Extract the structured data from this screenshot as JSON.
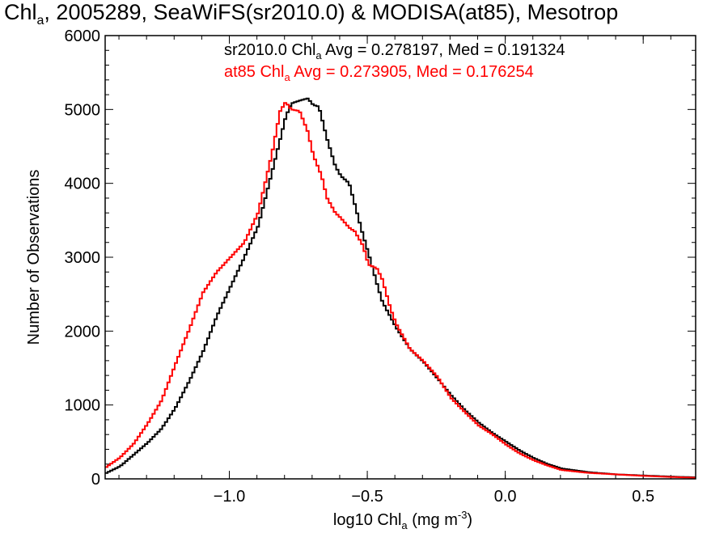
{
  "chart_data": {
    "type": "line",
    "title": {
      "prefix": "Chl",
      "sub": "a",
      "rest": ", 2005289, SeaWiFS(sr2010.0) & MODISA(at85), Mesotrop"
    },
    "xlabel": {
      "prefix": "log10 Chl",
      "sub": "a",
      "rest": " (mg m",
      "sup": "-3",
      "end": ")"
    },
    "ylabel": "Number of Observations",
    "xlim": [
      -1.45,
      0.69
    ],
    "ylim": [
      0,
      6000
    ],
    "x_ticks": [
      -1.0,
      -0.5,
      0.0,
      0.5
    ],
    "x_tick_labels": [
      "−1.0",
      "−0.5",
      "0.0",
      "0.5"
    ],
    "y_ticks": [
      0,
      1000,
      2000,
      3000,
      4000,
      5000,
      6000
    ],
    "y_tick_labels": [
      "0",
      "1000",
      "2000",
      "3000",
      "4000",
      "5000",
      "6000"
    ],
    "legend_placement": "top",
    "annotations": [
      {
        "prefix": "sr2010.0 Chl",
        "sub": "a",
        "rest": " Avg = 0.278197, Med = 0.191324",
        "color": "#000000"
      },
      {
        "prefix": "at85 Chl",
        "sub": "a",
        "rest": " Avg = 0.273905, Med = 0.176254",
        "color": "#ff0000"
      }
    ],
    "series": [
      {
        "color": "#000000",
        "points": [
          [
            -1.45,
            80
          ],
          [
            -1.4,
            170
          ],
          [
            -1.35,
            330
          ],
          [
            -1.3,
            490
          ],
          [
            -1.25,
            680
          ],
          [
            -1.2,
            960
          ],
          [
            -1.15,
            1320
          ],
          [
            -1.1,
            1720
          ],
          [
            -1.05,
            2200
          ],
          [
            -1.0,
            2600
          ],
          [
            -0.95,
            3000
          ],
          [
            -0.9,
            3420
          ],
          [
            -0.85,
            4150
          ],
          [
            -0.8,
            4900
          ],
          [
            -0.78,
            5080
          ],
          [
            -0.75,
            5120
          ],
          [
            -0.72,
            5150
          ],
          [
            -0.7,
            5060
          ],
          [
            -0.68,
            5040
          ],
          [
            -0.65,
            4600
          ],
          [
            -0.62,
            4230
          ],
          [
            -0.6,
            4100
          ],
          [
            -0.57,
            4000
          ],
          [
            -0.55,
            3720
          ],
          [
            -0.52,
            3300
          ],
          [
            -0.5,
            3050
          ],
          [
            -0.47,
            2650
          ],
          [
            -0.45,
            2400
          ],
          [
            -0.4,
            2050
          ],
          [
            -0.35,
            1760
          ],
          [
            -0.3,
            1580
          ],
          [
            -0.25,
            1360
          ],
          [
            -0.2,
            1130
          ],
          [
            -0.15,
            930
          ],
          [
            -0.1,
            760
          ],
          [
            -0.05,
            620
          ],
          [
            0.0,
            500
          ],
          [
            0.05,
            380
          ],
          [
            0.1,
            280
          ],
          [
            0.15,
            200
          ],
          [
            0.2,
            140
          ],
          [
            0.3,
            90
          ],
          [
            0.4,
            60
          ],
          [
            0.5,
            45
          ],
          [
            0.6,
            30
          ],
          [
            0.69,
            20
          ]
        ]
      },
      {
        "color": "#ff0000",
        "points": [
          [
            -1.45,
            160
          ],
          [
            -1.4,
            290
          ],
          [
            -1.35,
            480
          ],
          [
            -1.3,
            750
          ],
          [
            -1.25,
            1060
          ],
          [
            -1.2,
            1550
          ],
          [
            -1.15,
            2020
          ],
          [
            -1.1,
            2520
          ],
          [
            -1.05,
            2800
          ],
          [
            -1.0,
            3000
          ],
          [
            -0.95,
            3200
          ],
          [
            -0.9,
            3600
          ],
          [
            -0.85,
            4400
          ],
          [
            -0.82,
            4980
          ],
          [
            -0.8,
            5100
          ],
          [
            -0.78,
            5000
          ],
          [
            -0.75,
            4980
          ],
          [
            -0.72,
            4700
          ],
          [
            -0.7,
            4380
          ],
          [
            -0.67,
            4100
          ],
          [
            -0.65,
            3800
          ],
          [
            -0.62,
            3600
          ],
          [
            -0.6,
            3530
          ],
          [
            -0.57,
            3400
          ],
          [
            -0.55,
            3350
          ],
          [
            -0.52,
            3160
          ],
          [
            -0.5,
            2900
          ],
          [
            -0.47,
            2850
          ],
          [
            -0.45,
            2700
          ],
          [
            -0.42,
            2300
          ],
          [
            -0.4,
            2100
          ],
          [
            -0.35,
            1760
          ],
          [
            -0.3,
            1590
          ],
          [
            -0.25,
            1380
          ],
          [
            -0.2,
            1090
          ],
          [
            -0.15,
            900
          ],
          [
            -0.1,
            720
          ],
          [
            -0.05,
            600
          ],
          [
            0.0,
            460
          ],
          [
            0.05,
            340
          ],
          [
            0.1,
            250
          ],
          [
            0.15,
            180
          ],
          [
            0.2,
            120
          ],
          [
            0.3,
            80
          ],
          [
            0.4,
            60
          ],
          [
            0.5,
            40
          ],
          [
            0.6,
            25
          ],
          [
            0.69,
            15
          ]
        ]
      }
    ]
  }
}
